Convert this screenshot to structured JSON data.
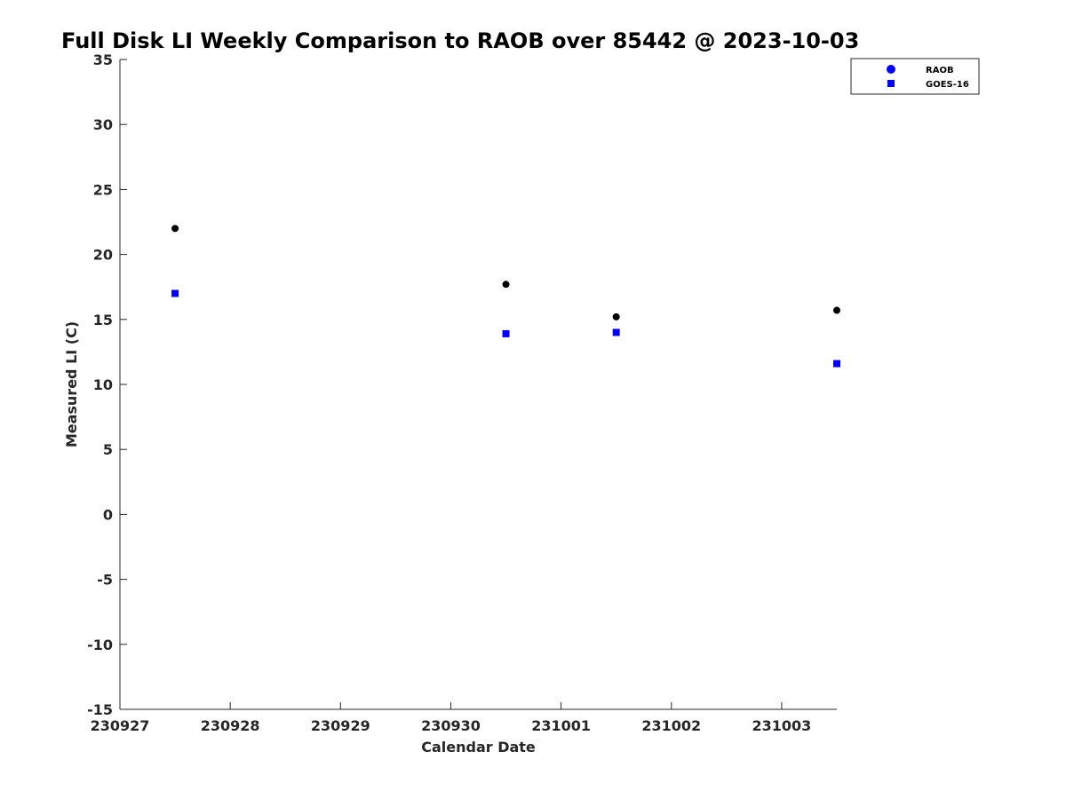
{
  "chart_data": {
    "type": "scatter",
    "title": "Full Disk LI Weekly Comparison to RAOB over 85442 @ 2023-10-03",
    "xlabel": "Calendar Date",
    "ylabel": "Measured LI (C)",
    "xlim": [
      0,
      6.5
    ],
    "ylim": [
      -15,
      35
    ],
    "x_ticks": [
      {
        "value": 0,
        "label": "230927"
      },
      {
        "value": 1,
        "label": "230928"
      },
      {
        "value": 2,
        "label": "230929"
      },
      {
        "value": 3,
        "label": "230930"
      },
      {
        "value": 4,
        "label": "231001"
      },
      {
        "value": 5,
        "label": "231002"
      },
      {
        "value": 6,
        "label": "231003"
      }
    ],
    "y_ticks": [
      35,
      30,
      25,
      20,
      15,
      10,
      5,
      0,
      -5,
      -10,
      -15
    ],
    "legend_position": "top-right",
    "series": [
      {
        "name": "RAOB",
        "marker": "circle",
        "color": "#000000",
        "legend_color": "#0000ff",
        "x": [
          0.5,
          3.5,
          4.5,
          6.5
        ],
        "y": [
          22.0,
          17.7,
          15.2,
          15.7
        ]
      },
      {
        "name": "GOES-16",
        "marker": "square",
        "color": "#0000ff",
        "legend_color": "#0000ff",
        "x": [
          0.5,
          3.5,
          4.5,
          6.5
        ],
        "y": [
          17.0,
          13.9,
          14.0,
          11.6
        ]
      }
    ]
  }
}
